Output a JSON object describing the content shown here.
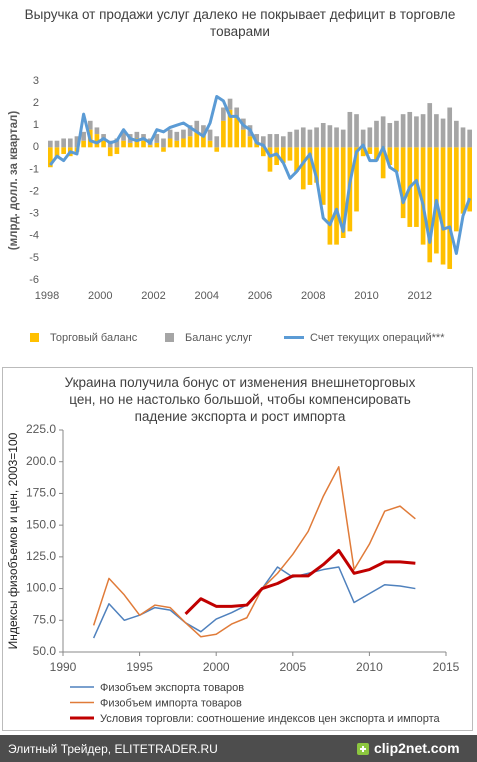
{
  "chart_data": [
    {
      "type": "bar",
      "title": "Выручка от продажи услуг далеко не покрывает дефицит в торговле товарами",
      "y_label": "(млрд. долл. за квартал)",
      "categories": [
        "1998",
        null,
        null,
        null,
        null,
        null,
        null,
        null,
        "2000",
        null,
        null,
        null,
        null,
        null,
        null,
        null,
        "2002",
        null,
        null,
        null,
        null,
        null,
        null,
        null,
        "2004",
        null,
        null,
        null,
        null,
        null,
        null,
        null,
        "2006",
        null,
        null,
        null,
        null,
        null,
        null,
        null,
        "2008",
        null,
        null,
        null,
        null,
        null,
        null,
        null,
        "2010",
        null,
        null,
        null,
        null,
        null,
        null,
        null,
        "2012",
        null,
        null,
        null,
        null,
        null,
        null,
        null
      ],
      "ylim": [
        -6,
        3
      ],
      "yticks": [
        -6,
        -5,
        -4,
        -3,
        -2,
        -1,
        0,
        1,
        2,
        3
      ],
      "grid": false,
      "legend": "bottom",
      "series": [
        {
          "name": "Торговый баланс",
          "type": "bar",
          "color": "#ffc000",
          "values": [
            -0.9,
            -0.5,
            -0.3,
            -0.4,
            -0.2,
            0.3,
            0.8,
            0.6,
            0.3,
            -0.4,
            -0.3,
            0.3,
            0.2,
            0.4,
            0.3,
            0.1,
            0.2,
            -0.2,
            0.4,
            0.3,
            0.4,
            0.5,
            0.7,
            0.6,
            0.3,
            -0.2,
            1.2,
            1.7,
            1.4,
            0.8,
            0.5,
            0.2,
            -0.4,
            -1.1,
            -0.8,
            -0.7,
            -0.6,
            -1.1,
            -1.9,
            -1.7,
            -1.6,
            -2.6,
            -4.4,
            -4.4,
            -4.1,
            -3.8,
            -2.9,
            -0.4,
            -0.3,
            -0.6,
            -1.4,
            -0.8,
            -1.1,
            -3.2,
            -3.6,
            -3.6,
            -4.4,
            -5.2,
            -4.8,
            -5.3,
            -5.5,
            -3.8,
            -3.0,
            -2.9
          ]
        },
        {
          "name": "Баланс услуг",
          "type": "bar",
          "color": "#a5a5a5",
          "values": [
            0.3,
            0.3,
            0.4,
            0.4,
            0.5,
            0.4,
            0.4,
            0.3,
            0.3,
            0.3,
            0.4,
            0.4,
            0.4,
            0.3,
            0.3,
            0.3,
            0.4,
            0.4,
            0.4,
            0.4,
            0.4,
            0.5,
            0.5,
            0.4,
            0.5,
            0.5,
            0.6,
            0.5,
            0.4,
            0.5,
            0.5,
            0.4,
            0.5,
            0.6,
            0.6,
            0.5,
            0.7,
            0.8,
            0.9,
            0.8,
            0.9,
            1.1,
            1.0,
            0.9,
            0.8,
            1.6,
            1.5,
            0.8,
            0.9,
            1.2,
            1.4,
            1.1,
            1.2,
            1.5,
            1.6,
            1.4,
            1.5,
            2.0,
            1.5,
            1.3,
            1.8,
            1.2,
            0.9,
            0.8
          ]
        },
        {
          "name": "Счет текущих операций***",
          "type": "line",
          "color": "#5b9bd5",
          "values": [
            -0.8,
            -0.4,
            -0.6,
            -0.2,
            -0.3,
            1.5,
            0.3,
            0.2,
            0.4,
            0.2,
            0.3,
            0.8,
            0.4,
            0.3,
            0.4,
            0.2,
            0.8,
            0.7,
            0.9,
            1.0,
            1.1,
            0.9,
            0.7,
            0.5,
            1.1,
            2.3,
            2.1,
            1.4,
            1.4,
            1.0,
            0.8,
            0.2,
            0.1,
            -0.4,
            -0.3,
            -0.7,
            -1.4,
            -1.1,
            -0.7,
            -0.3,
            -1.4,
            -3.2,
            -3.5,
            -2.8,
            -3.8,
            -1.6,
            -0.2,
            0.1,
            -0.6,
            -0.6,
            0.0,
            -0.9,
            -1.1,
            -2.5,
            -1.8,
            -1.5,
            -2.6,
            -4.3,
            -2.4,
            -3.7,
            -3.6,
            -4.8,
            -3.1,
            -2.3
          ]
        }
      ]
    },
    {
      "type": "line",
      "title": "Украина получила бонус от изменения внешнеторговых цен, но не настолько большой, чтобы компенсировать падение экспорта и рост импорта",
      "y_label": "Индексы физобъемов и цен, 2003=100",
      "x": [
        1992,
        1993,
        1994,
        1995,
        1996,
        1997,
        1998,
        1999,
        2000,
        2001,
        2002,
        2003,
        2004,
        2005,
        2006,
        2007,
        2008,
        2009,
        2010,
        2011,
        2012,
        2013
      ],
      "xlim": [
        1990,
        2015
      ],
      "xticks": [
        1990,
        1995,
        2000,
        2005,
        2010,
        2015
      ],
      "ylim": [
        50,
        225
      ],
      "yticks": [
        {
          "value": 50,
          "label": "50.0"
        },
        {
          "value": 75,
          "label": "75.0"
        },
        {
          "value": 100,
          "label": "100.0"
        },
        {
          "value": 125,
          "label": "125.0"
        },
        {
          "value": 150,
          "label": "150.0"
        },
        {
          "value": 175,
          "label": "175.0"
        },
        {
          "value": 200,
          "label": "200.0"
        },
        {
          "value": 225,
          "label": "225.0"
        }
      ],
      "grid": false,
      "legend": "bottom",
      "series": [
        {
          "name": "Физобъем экспорта товаров",
          "color": "#4f81bd",
          "width": 1.5,
          "values": [
            61,
            88,
            75,
            79,
            85,
            83,
            73,
            66,
            76,
            81,
            87,
            100,
            117,
            109,
            112,
            115,
            117,
            89,
            96,
            103,
            102,
            100
          ]
        },
        {
          "name": "Физобъем импорта товаров",
          "color": "#e07b39",
          "width": 1.5,
          "values": [
            71,
            108,
            95,
            79,
            87,
            85,
            73,
            62,
            64,
            72,
            77,
            100,
            112,
            127,
            145,
            173,
            196,
            115,
            135,
            161,
            165,
            155
          ]
        },
        {
          "name": "Условия торговли: соотношение индексов цен экспорта и импорта",
          "color": "#c00000",
          "width": 3,
          "values": [
            null,
            null,
            null,
            null,
            null,
            null,
            80,
            92,
            86,
            86,
            87,
            100,
            104,
            110,
            110,
            119,
            130,
            112,
            115,
            121,
            121,
            120
          ]
        }
      ]
    }
  ],
  "footer": {
    "caption": "Элитный Трейдер, ELITETRADER.RU",
    "logo": "clip2net.com"
  }
}
